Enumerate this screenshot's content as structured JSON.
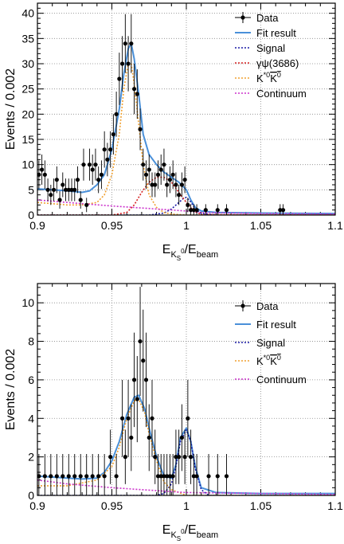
{
  "chart_data": [
    {
      "type": "scatter",
      "xlabel": "E_{K_S^0}/E_{beam}",
      "xlabel_main": "E",
      "xlabel_sub": "K",
      "xlabel_subsub": "S",
      "xlabel_subsup": "0",
      "xlabel_tail": "/E",
      "xlabel_tailsub": "beam",
      "ylabel": "Events / 0.002",
      "xlim": [
        0.9,
        1.1
      ],
      "ylim": [
        0,
        42
      ],
      "xticks": [
        0.9,
        0.95,
        1,
        1.05,
        1.1
      ],
      "xtick_labels": [
        "0.9",
        "0.95",
        "1",
        "1.05",
        "1.1"
      ],
      "yticks": [
        0,
        5,
        10,
        15,
        20,
        25,
        30,
        35,
        40
      ],
      "ytick_labels": [
        "0",
        "5",
        "10",
        "15",
        "20",
        "25",
        "30",
        "35",
        "40"
      ],
      "grid": true,
      "legend_position": "top-right",
      "legend": [
        {
          "label": "Data",
          "kind": "data",
          "color": "#000000"
        },
        {
          "label": "Fit result",
          "kind": "solid",
          "color": "#4a90d9"
        },
        {
          "label": "Signal",
          "kind": "dotted",
          "color": "#1a1aa6"
        },
        {
          "label": "γψ(3686)",
          "kind": "dotted",
          "color": "#d62020"
        },
        {
          "label": "K*0K̄0",
          "kind": "dotted",
          "color": "#f0a030",
          "special": "kstar"
        },
        {
          "label": "Continuum",
          "kind": "dotted",
          "color": "#cc33cc"
        }
      ],
      "data_points": {
        "x": [
          0.901,
          0.903,
          0.905,
          0.907,
          0.909,
          0.911,
          0.913,
          0.915,
          0.917,
          0.919,
          0.921,
          0.923,
          0.925,
          0.927,
          0.929,
          0.931,
          0.933,
          0.935,
          0.937,
          0.939,
          0.941,
          0.943,
          0.945,
          0.947,
          0.949,
          0.951,
          0.953,
          0.955,
          0.957,
          0.959,
          0.961,
          0.963,
          0.965,
          0.967,
          0.969,
          0.971,
          0.973,
          0.975,
          0.977,
          0.979,
          0.981,
          0.983,
          0.985,
          0.987,
          0.989,
          0.991,
          0.993,
          0.995,
          0.997,
          0.999,
          1.001,
          1.003,
          1.005,
          1.007,
          1.013,
          1.021,
          1.027,
          1.063,
          1.065
        ],
        "y": [
          8,
          9,
          8,
          5,
          4,
          5,
          7,
          3,
          6,
          5,
          5,
          5,
          5,
          7,
          3,
          10,
          2,
          10,
          9,
          10,
          7,
          8,
          13,
          11,
          13,
          16,
          20,
          27,
          30,
          34,
          30,
          34,
          25,
          24,
          17,
          10,
          8,
          9,
          6,
          6,
          8,
          9,
          10,
          6,
          7,
          8,
          6,
          4,
          6,
          7,
          2,
          1,
          1,
          1,
          1,
          1,
          1,
          1,
          1
        ]
      },
      "series": [
        {
          "name": "Fit result",
          "color": "#4a90d9",
          "style": "solid",
          "x": [
            0.9,
            0.91,
            0.92,
            0.93,
            0.935,
            0.94,
            0.945,
            0.95,
            0.955,
            0.958,
            0.961,
            0.963,
            0.965,
            0.968,
            0.971,
            0.975,
            0.98,
            0.985,
            0.99,
            0.995,
            1.0,
            1.003,
            1.006,
            1.01,
            1.02,
            1.05,
            1.1
          ],
          "y": [
            5.2,
            5,
            4.8,
            4.5,
            4.8,
            6,
            8,
            13,
            21,
            28,
            33,
            34,
            31,
            24,
            16,
            12,
            10,
            8.5,
            7.5,
            6.5,
            5,
            3,
            1.5,
            0.8,
            0.5,
            0.4,
            0.3
          ]
        },
        {
          "name": "Signal",
          "color": "#1a1aa6",
          "style": "dotted",
          "x": [
            0.9,
            0.95,
            0.975,
            0.985,
            0.99,
            0.995,
            0.998,
            1.0,
            1.003,
            1.006,
            1.01,
            1.02,
            1.1
          ],
          "y": [
            0,
            0,
            0,
            0.4,
            1.2,
            2.5,
            3.3,
            3.5,
            2.6,
            1.2,
            0.3,
            0,
            0
          ]
        },
        {
          "name": "γψ(3686)",
          "color": "#d62020",
          "style": "dotted",
          "x": [
            0.9,
            0.95,
            0.96,
            0.965,
            0.97,
            0.975,
            0.98,
            0.985,
            0.99,
            0.995,
            1.0,
            1.005,
            1.01,
            1.1
          ],
          "y": [
            0,
            0,
            0.5,
            2,
            4.5,
            6.5,
            7.5,
            7.5,
            6.5,
            4.5,
            2.5,
            0.8,
            0.1,
            0
          ]
        },
        {
          "name": "K*0K̄0",
          "color": "#f0a030",
          "style": "dotted",
          "x": [
            0.9,
            0.92,
            0.93,
            0.94,
            0.945,
            0.95,
            0.955,
            0.958,
            0.961,
            0.963,
            0.965,
            0.968,
            0.971,
            0.975,
            0.98,
            0.985,
            0.99,
            1.0,
            1.1
          ],
          "y": [
            2.5,
            2,
            2,
            2.5,
            4,
            8,
            16,
            25,
            30,
            30,
            26,
            18,
            10,
            4,
            1.5,
            0.5,
            0.2,
            0,
            0
          ]
        },
        {
          "name": "Continuum",
          "color": "#cc33cc",
          "style": "dotted",
          "x": [
            0.9,
            0.92,
            0.95,
            0.98,
            1.0,
            1.01,
            1.05,
            1.1
          ],
          "y": [
            3,
            2.5,
            1.8,
            1.2,
            0.8,
            0.5,
            0.3,
            0.2
          ]
        }
      ]
    },
    {
      "type": "scatter",
      "xlabel": "E_{K_S^0}/E_{beam}",
      "xlabel_main": "E",
      "xlabel_sub": "K",
      "xlabel_subsub": "S",
      "xlabel_subsup": "0",
      "xlabel_tail": "/E",
      "xlabel_tailsub": "beam",
      "ylabel": "Events / 0.002",
      "xlim": [
        0.9,
        1.1
      ],
      "ylim": [
        0,
        11
      ],
      "xticks": [
        0.9,
        0.95,
        1,
        1.05,
        1.1
      ],
      "xtick_labels": [
        "0.9",
        "0.95",
        "1",
        "1.05",
        "1.1"
      ],
      "yticks": [
        0,
        2,
        4,
        6,
        8,
        10
      ],
      "ytick_labels": [
        "0",
        "2",
        "4",
        "6",
        "8",
        "10"
      ],
      "grid": true,
      "legend_position": "top-right",
      "legend": [
        {
          "label": "Data",
          "kind": "data",
          "color": "#000000"
        },
        {
          "label": "Fit result",
          "kind": "solid",
          "color": "#4a90d9"
        },
        {
          "label": "Signal",
          "kind": "dotted",
          "color": "#1a1aa6"
        },
        {
          "label": "K*0K̄0",
          "kind": "dotted",
          "color": "#f0a030",
          "special": "kstar"
        },
        {
          "label": "Continuum",
          "kind": "dotted",
          "color": "#cc33cc"
        }
      ],
      "data_points": {
        "x": [
          0.901,
          0.905,
          0.909,
          0.913,
          0.917,
          0.921,
          0.925,
          0.929,
          0.933,
          0.937,
          0.941,
          0.945,
          0.949,
          0.953,
          0.957,
          0.959,
          0.961,
          0.963,
          0.965,
          0.967,
          0.969,
          0.971,
          0.973,
          0.975,
          0.977,
          0.979,
          0.981,
          0.983,
          0.985,
          0.987,
          0.989,
          0.991,
          0.993,
          0.995,
          0.997,
          0.999,
          1.001,
          1.003,
          1.005,
          1.007,
          1.015,
          1.021,
          1.027
        ],
        "y": [
          1,
          1,
          1,
          1,
          1,
          1,
          1,
          1,
          1,
          1,
          1,
          1,
          2,
          1,
          4,
          2,
          4,
          3,
          6,
          5,
          8,
          7,
          6,
          3,
          4,
          2,
          1,
          1,
          1,
          1,
          1,
          1,
          2,
          2,
          3,
          2,
          4,
          2,
          1,
          1,
          1,
          1,
          1
        ]
      },
      "series": [
        {
          "name": "Fit result",
          "color": "#4a90d9",
          "style": "solid",
          "x": [
            0.9,
            0.92,
            0.93,
            0.94,
            0.945,
            0.95,
            0.955,
            0.96,
            0.965,
            0.968,
            0.972,
            0.975,
            0.98,
            0.985,
            0.99,
            0.993,
            0.996,
            1.0,
            1.003,
            1.006,
            1.01,
            1.02,
            1.05,
            1.1
          ],
          "y": [
            1,
            0.9,
            0.85,
            0.9,
            1.2,
            1.8,
            2.8,
            4.2,
            5.1,
            5.2,
            4.5,
            3.5,
            2,
            1,
            0.9,
            1.6,
            3,
            3.5,
            2.8,
            1.5,
            0.4,
            0.15,
            0.1,
            0.1
          ]
        },
        {
          "name": "Signal",
          "color": "#1a1aa6",
          "style": "dotted",
          "x": [
            0.9,
            0.98,
            0.985,
            0.99,
            0.993,
            0.996,
            1.0,
            1.003,
            1.006,
            1.01,
            1.015,
            1.1
          ],
          "y": [
            0,
            0,
            0.1,
            0.6,
            1.5,
            2.8,
            3.4,
            2.8,
            1.4,
            0.3,
            0,
            0
          ]
        },
        {
          "name": "K*0K̄0",
          "color": "#f0a030",
          "style": "dotted",
          "x": [
            0.9,
            0.92,
            0.94,
            0.95,
            0.955,
            0.96,
            0.965,
            0.968,
            0.972,
            0.975,
            0.98,
            0.985,
            0.99,
            1.0,
            1.1
          ],
          "y": [
            0.5,
            0.5,
            0.8,
            1.5,
            2.5,
            4,
            4.9,
            5,
            4.3,
            3.2,
            1.8,
            0.7,
            0.3,
            0,
            0
          ]
        },
        {
          "name": "Continuum",
          "color": "#cc33cc",
          "style": "dotted",
          "x": [
            0.9,
            0.92,
            0.95,
            0.98,
            1.0,
            1.05,
            1.1
          ],
          "y": [
            0.8,
            0.6,
            0.4,
            0.25,
            0.15,
            0.1,
            0.05
          ]
        }
      ]
    }
  ]
}
